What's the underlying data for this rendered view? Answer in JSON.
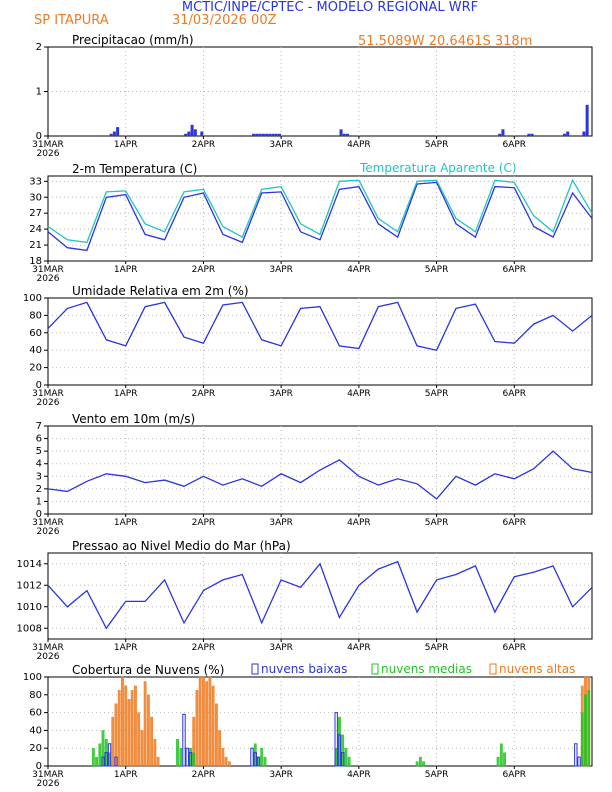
{
  "header": {
    "title": "MCTIC/INPE/CPTEC - MODELO REGIONAL WRF",
    "location": "SP ITAPURA",
    "run": "31/03/2026 00Z",
    "coords": "51.5089W 20.6461S 318m"
  },
  "colors": {
    "blue": "#2a34e0",
    "cyan": "#22c4c0",
    "orange": "#f07a20",
    "green": "#22c422",
    "grid": "#bbbbbb"
  },
  "time_axis": {
    "ticks": [
      {
        "label": "31MAR",
        "sub": "2026",
        "h": 0
      },
      {
        "label": "1APR",
        "sub": "",
        "h": 24
      },
      {
        "label": "2APR",
        "sub": "",
        "h": 48
      },
      {
        "label": "3APR",
        "sub": "",
        "h": 72
      },
      {
        "label": "4APR",
        "sub": "",
        "h": 96
      },
      {
        "label": "5APR",
        "sub": "",
        "h": 120
      },
      {
        "label": "6APR",
        "sub": "",
        "h": 144
      }
    ],
    "hours_total": 168
  },
  "chart_data": [
    {
      "type": "bar",
      "title": "Precipitacao (mm/h)",
      "ylim": [
        0,
        2
      ],
      "yticks": [
        "0",
        "1",
        "2"
      ],
      "x": [
        19.5,
        20.5,
        21.5,
        42.5,
        43.5,
        44.5,
        45.5,
        47.5,
        63.5,
        64.5,
        65.5,
        66.5,
        67.5,
        68.5,
        69.5,
        70.5,
        71.5,
        90.5,
        91.5,
        92.5,
        139.5,
        140.5,
        148.5,
        149.5,
        159.5,
        160.5,
        165.5,
        166.5
      ],
      "values": [
        0.05,
        0.1,
        0.2,
        0.05,
        0.1,
        0.25,
        0.15,
        0.1,
        0.05,
        0.05,
        0.05,
        0.05,
        0.05,
        0.05,
        0.05,
        0.05,
        0.05,
        0.15,
        0.05,
        0.05,
        0.05,
        0.15,
        0.05,
        0.05,
        0.05,
        0.1,
        0.1,
        0.7
      ]
    },
    {
      "type": "line",
      "title": "2-m Temperatura (C)",
      "legend": "Temperatura Aparente (C)",
      "ylim": [
        18,
        34
      ],
      "yticks": [
        "18",
        "21",
        "24",
        "27",
        "30",
        "33"
      ],
      "x": [
        0,
        6,
        12,
        18,
        24,
        30,
        36,
        42,
        48,
        54,
        60,
        66,
        72,
        78,
        84,
        90,
        96,
        102,
        108,
        114,
        120,
        126,
        132,
        138,
        144,
        150,
        156,
        162,
        168
      ],
      "series": [
        {
          "name": "2-m Temperatura",
          "values": [
            23.5,
            20.5,
            20.0,
            30.0,
            30.5,
            23.0,
            22.0,
            30.0,
            30.8,
            23.0,
            21.5,
            30.8,
            31.0,
            23.5,
            22.0,
            31.5,
            32.0,
            25.0,
            22.5,
            32.5,
            32.8,
            25.0,
            22.5,
            32.0,
            31.8,
            24.5,
            22.5,
            30.8,
            26.0
          ]
        },
        {
          "name": "Temperatura Aparente",
          "values": [
            24.5,
            22.0,
            21.5,
            31.0,
            31.2,
            25.0,
            23.5,
            31.0,
            31.5,
            24.5,
            22.5,
            31.5,
            32.0,
            25.0,
            23.0,
            33.0,
            33.2,
            26.0,
            23.5,
            33.0,
            33.2,
            26.0,
            23.5,
            33.2,
            32.8,
            26.5,
            23.5,
            33.2,
            27.0
          ]
        }
      ]
    },
    {
      "type": "line",
      "title": "Umidade Relativa em 2m (%)",
      "ylim": [
        0,
        100
      ],
      "yticks": [
        "0",
        "20",
        "40",
        "60",
        "80",
        "100"
      ],
      "x": [
        0,
        6,
        12,
        18,
        24,
        30,
        36,
        42,
        48,
        54,
        60,
        66,
        72,
        78,
        84,
        90,
        96,
        102,
        108,
        114,
        120,
        126,
        132,
        138,
        144,
        150,
        156,
        162,
        168
      ],
      "series": [
        {
          "name": "Umidade Relativa",
          "values": [
            65,
            88,
            95,
            52,
            45,
            90,
            95,
            55,
            48,
            92,
            95,
            52,
            45,
            88,
            90,
            45,
            42,
            90,
            95,
            45,
            40,
            88,
            93,
            50,
            48,
            70,
            80,
            62,
            80
          ]
        }
      ]
    },
    {
      "type": "line",
      "title": "Vento em 10m (m/s)",
      "ylim": [
        0,
        7
      ],
      "yticks": [
        "0",
        "1",
        "2",
        "3",
        "4",
        "5",
        "6",
        "7"
      ],
      "x": [
        0,
        6,
        12,
        18,
        24,
        30,
        36,
        42,
        48,
        54,
        60,
        66,
        72,
        78,
        84,
        90,
        96,
        102,
        108,
        114,
        120,
        126,
        132,
        138,
        144,
        150,
        156,
        162,
        168
      ],
      "series": [
        {
          "name": "Vento",
          "values": [
            2.0,
            1.8,
            2.6,
            3.2,
            3.0,
            2.5,
            2.7,
            2.2,
            3.0,
            2.3,
            2.8,
            2.2,
            3.2,
            2.5,
            3.5,
            4.3,
            3.0,
            2.3,
            2.8,
            2.4,
            1.2,
            3.0,
            2.3,
            3.2,
            2.8,
            3.6,
            5.0,
            3.6,
            3.3
          ]
        }
      ]
    },
    {
      "type": "line",
      "title": "Pressao ao Nivel Medio do Mar (hPa)",
      "ylim": [
        1007,
        1015
      ],
      "yticks": [
        "1008",
        "1010",
        "1012",
        "1014"
      ],
      "x": [
        0,
        6,
        12,
        18,
        24,
        30,
        36,
        42,
        48,
        54,
        60,
        66,
        72,
        78,
        84,
        90,
        96,
        102,
        108,
        114,
        120,
        126,
        132,
        138,
        144,
        150,
        156,
        162,
        168
      ],
      "series": [
        {
          "name": "Pressao",
          "values": [
            1012.0,
            1010.0,
            1011.5,
            1008.0,
            1010.5,
            1010.5,
            1012.5,
            1008.5,
            1011.5,
            1012.5,
            1013.0,
            1008.5,
            1012.5,
            1011.8,
            1014.0,
            1009.0,
            1012.0,
            1013.5,
            1014.2,
            1009.5,
            1012.5,
            1013.0,
            1013.8,
            1009.5,
            1012.8,
            1013.2,
            1013.8,
            1010.0,
            1011.8
          ]
        }
      ]
    },
    {
      "type": "bar",
      "title": "Cobertura de Nuvens (%)",
      "legend": [
        "nuvens baixas",
        "nuvens medias",
        "nuvens altas"
      ],
      "ylim": [
        0,
        100
      ],
      "yticks": [
        "0",
        "20",
        "40",
        "60",
        "80",
        "100"
      ],
      "series": [
        {
          "name": "nuvens baixas",
          "x": [
            17,
            18,
            19,
            21,
            42,
            43,
            44,
            63,
            64,
            65,
            89,
            90,
            91,
            163,
            164
          ],
          "values": [
            10,
            15,
            25,
            10,
            58,
            20,
            15,
            20,
            15,
            10,
            60,
            35,
            15,
            25,
            10
          ]
        },
        {
          "name": "nuvens medias",
          "x": [
            14,
            15,
            16,
            17,
            18,
            19,
            40,
            41,
            44,
            45,
            64,
            65,
            66,
            67,
            89,
            90,
            91,
            92,
            93,
            114,
            115,
            116,
            139,
            140,
            141,
            165,
            166,
            167
          ],
          "values": [
            20,
            10,
            25,
            40,
            30,
            15,
            30,
            20,
            20,
            15,
            25,
            10,
            20,
            10,
            20,
            55,
            35,
            20,
            10,
            5,
            10,
            5,
            10,
            25,
            15,
            60,
            80,
            85
          ]
        },
        {
          "name": "nuvens altas",
          "x": [
            20,
            21,
            22,
            23,
            24,
            25,
            26,
            27,
            28,
            29,
            30,
            31,
            32,
            33,
            34,
            45,
            46,
            47,
            48,
            49,
            50,
            51,
            52,
            53,
            54,
            55,
            56,
            165,
            166,
            167
          ],
          "values": [
            55,
            70,
            85,
            100,
            90,
            75,
            85,
            90,
            60,
            40,
            95,
            80,
            55,
            30,
            10,
            55,
            85,
            100,
            100,
            95,
            100,
            90,
            70,
            40,
            20,
            10,
            5,
            90,
            100,
            100
          ]
        }
      ]
    }
  ]
}
